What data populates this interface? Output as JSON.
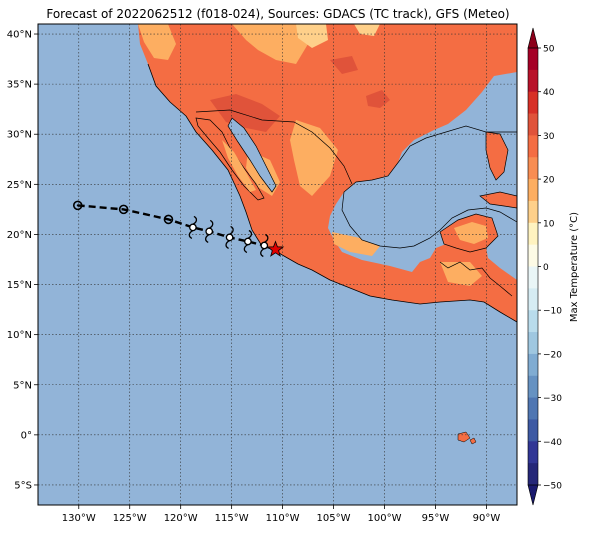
{
  "title": "Forecast of 2022062512 (f018-024), Sources: GDACS (TC track), GFS (Meteo)",
  "map": {
    "lon_range": [
      -134,
      -87
    ],
    "lat_range": [
      -7,
      41
    ],
    "x_ticks": [
      {
        "lon": -130,
        "label": "130°W"
      },
      {
        "lon": -125,
        "label": "125°W"
      },
      {
        "lon": -120,
        "label": "120°W"
      },
      {
        "lon": -115,
        "label": "115°W"
      },
      {
        "lon": -110,
        "label": "110°W"
      },
      {
        "lon": -105,
        "label": "105°W"
      },
      {
        "lon": -100,
        "label": "100°W"
      },
      {
        "lon": -95,
        "label": "95°W"
      },
      {
        "lon": -90,
        "label": "90°W"
      }
    ],
    "y_ticks": [
      {
        "lat": 40,
        "label": "40°N"
      },
      {
        "lat": 35,
        "label": "35°N"
      },
      {
        "lat": 30,
        "label": "30°N"
      },
      {
        "lat": 25,
        "label": "25°N"
      },
      {
        "lat": 20,
        "label": "20°N"
      },
      {
        "lat": 15,
        "label": "15°N"
      },
      {
        "lat": 10,
        "label": "10°N"
      },
      {
        "lat": 5,
        "label": "5°N"
      },
      {
        "lat": 0,
        "label": "0°"
      },
      {
        "lat": -5,
        "label": "5°S"
      }
    ],
    "ocean_color": "#92b4d8",
    "grid": "dotted"
  },
  "track": {
    "past_points": [
      [
        -130.1,
        22.9
      ],
      [
        -125.6,
        22.5
      ],
      [
        -121.2,
        21.5
      ]
    ],
    "forecast_symbols": [
      [
        -118.8,
        20.7
      ],
      [
        -117.2,
        20.3
      ],
      [
        -115.2,
        19.7
      ],
      [
        -113.4,
        19.3
      ],
      [
        -111.8,
        18.9
      ]
    ],
    "current_position": [
      -110.7,
      18.5
    ]
  },
  "colorbar": {
    "label": "Max Temperature (°C)",
    "ticks": [
      "50",
      "40",
      "30",
      "20",
      "10",
      "0",
      "−10",
      "−20",
      "−30",
      "−40",
      "−50"
    ],
    "levels": [
      {
        "from": 45,
        "to": 50,
        "color": "#a50026"
      },
      {
        "from": 40,
        "to": 45,
        "color": "#b8122a"
      },
      {
        "from": 35,
        "to": 40,
        "color": "#d73027"
      },
      {
        "from": 30,
        "to": 35,
        "color": "#e0533a"
      },
      {
        "from": 25,
        "to": 30,
        "color": "#f46d43"
      },
      {
        "from": 20,
        "to": 25,
        "color": "#f88d52"
      },
      {
        "from": 15,
        "to": 20,
        "color": "#fdae61"
      },
      {
        "from": 10,
        "to": 15,
        "color": "#fed08a"
      },
      {
        "from": 5,
        "to": 10,
        "color": "#fff3c0"
      },
      {
        "from": 0,
        "to": 5,
        "color": "#fdfbe6"
      },
      {
        "from": -5,
        "to": 0,
        "color": "#eaf6f7"
      },
      {
        "from": -10,
        "to": -5,
        "color": "#d6ecf3"
      },
      {
        "from": -15,
        "to": -10,
        "color": "#b9dcec"
      },
      {
        "from": -20,
        "to": -15,
        "color": "#9fc7e0"
      },
      {
        "from": -25,
        "to": -20,
        "color": "#80acd2"
      },
      {
        "from": -30,
        "to": -25,
        "color": "#6692c2"
      },
      {
        "from": -35,
        "to": -30,
        "color": "#4f76b2"
      },
      {
        "from": -40,
        "to": -35,
        "color": "#3d59a3"
      },
      {
        "from": -45,
        "to": -40,
        "color": "#313695"
      },
      {
        "from": -50,
        "to": -45,
        "color": "#252778"
      }
    ],
    "extend_low_color": "#1a1a6e",
    "extend_high_color": "#8c001a"
  }
}
